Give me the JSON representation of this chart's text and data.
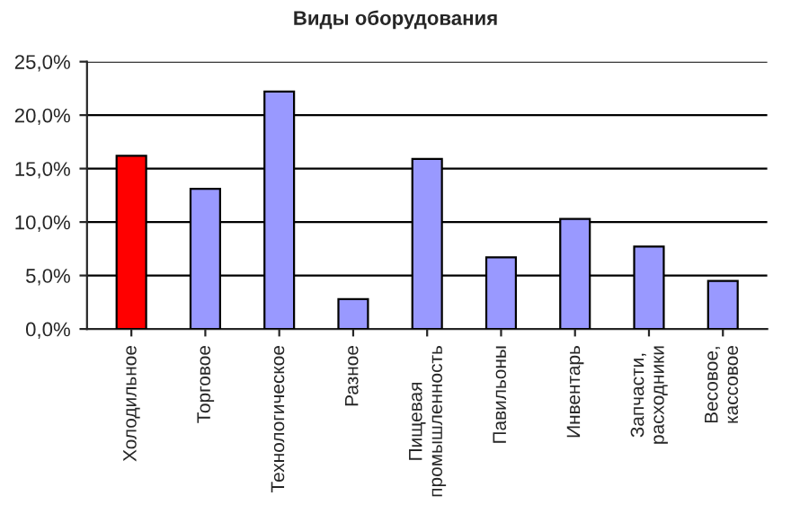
{
  "chart_data": {
    "type": "bar",
    "title": "Виды оборудования",
    "categories": [
      "Холодильное",
      "Торговое",
      "Технологическое",
      "Разное",
      "Пищевая\nпромышленность",
      "Павильоны",
      "Инвентарь",
      "Запчасти,\nрасходники",
      "Весовое,\nкассовое"
    ],
    "values": [
      16.2,
      13.1,
      22.2,
      2.8,
      15.9,
      6.7,
      10.3,
      7.7,
      4.5
    ],
    "colors": [
      "#ff0000",
      "#9999ff",
      "#9999ff",
      "#9999ff",
      "#9999ff",
      "#9999ff",
      "#9999ff",
      "#9999ff",
      "#9999ff"
    ],
    "ylim": [
      0,
      25
    ],
    "yticks": [
      {
        "value": 0,
        "label": "0,0%"
      },
      {
        "value": 5,
        "label": "5,0%"
      },
      {
        "value": 10,
        "label": "10,0%"
      },
      {
        "value": 15,
        "label": "15,0%"
      },
      {
        "value": 20,
        "label": "20,0%"
      },
      {
        "value": 25,
        "label": "25,0%"
      }
    ],
    "grid": "y",
    "legend": false
  }
}
